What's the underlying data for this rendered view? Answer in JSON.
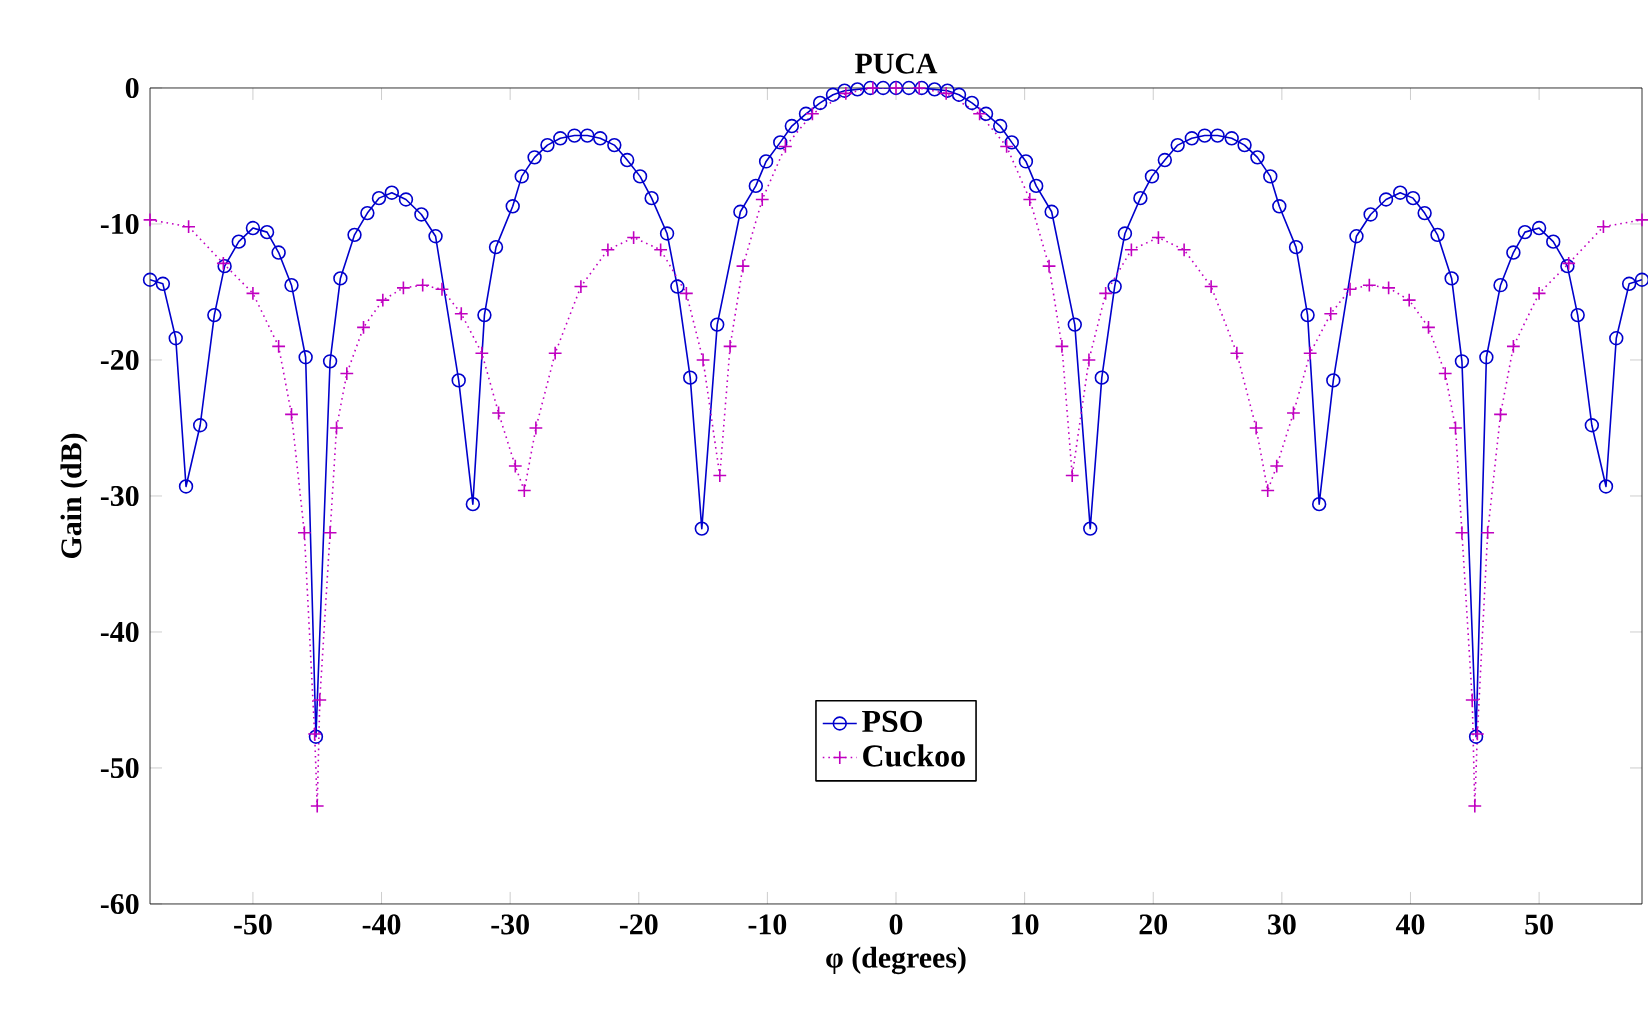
{
  "chart_data": {
    "type": "line",
    "title": "PUCA",
    "xlabel": "φ (degrees)",
    "ylabel": "Gain (dB)",
    "xlim": [
      -58,
      58
    ],
    "ylim": [
      -60,
      0
    ],
    "xticks": [
      -50,
      -40,
      -30,
      -20,
      -10,
      0,
      10,
      20,
      30,
      40,
      50
    ],
    "yticks": [
      -60,
      -50,
      -40,
      -30,
      -20,
      -10,
      0
    ],
    "legend": "bottom",
    "series": [
      {
        "name": "PSO",
        "color": "#0000cc",
        "marker": "circle",
        "line_style": "solid",
        "x": [
          -58,
          -57,
          -56,
          -55.2,
          -54.1,
          -53,
          -52.2,
          -51.1,
          -50,
          -48.9,
          -48,
          -47,
          -45.9,
          -45.1,
          -44,
          -43.2,
          -42.1,
          -41.1,
          -40.2,
          -39.2,
          -38.1,
          -36.9,
          -35.8,
          -34,
          -32.9,
          -32,
          -31.1,
          -29.8,
          -29.1,
          -28.1,
          -27.1,
          -26.1,
          -25,
          -24,
          -23,
          -21.9,
          -20.9,
          -19.9,
          -19,
          -17.8,
          -17,
          -16,
          -15.1,
          -13.9,
          -12.1,
          -10.9,
          -10.1,
          -9,
          -8.1,
          -7,
          -5.9,
          -4.9,
          -4,
          -3,
          -2,
          -1,
          0,
          1,
          2,
          3,
          4,
          4.9,
          5.9,
          7,
          8.1,
          9,
          10.1,
          10.9,
          12.1,
          13.9,
          15.1,
          16,
          17,
          17.8,
          19,
          19.9,
          20.9,
          21.9,
          23,
          24,
          25,
          26.1,
          27.1,
          28.1,
          29.1,
          29.8,
          31.1,
          32,
          32.9,
          34,
          35.8,
          36.9,
          38.1,
          39.2,
          40.2,
          41.1,
          42.1,
          43.2,
          44,
          45.1,
          45.9,
          47,
          48,
          48.9,
          50,
          51.1,
          52.2,
          53,
          54.1,
          55.2,
          56,
          57,
          58
        ],
        "values": [
          -14.1,
          -14.4,
          -18.4,
          -29.3,
          -24.8,
          -16.7,
          -13.1,
          -11.3,
          -10.3,
          -10.6,
          -12.1,
          -14.5,
          -19.8,
          -47.7,
          -20.1,
          -14,
          -10.8,
          -9.2,
          -8.1,
          -7.7,
          -8.2,
          -9.3,
          -10.9,
          -21.5,
          -30.6,
          -16.7,
          -11.7,
          -8.7,
          -6.5,
          -5.1,
          -4.2,
          -3.7,
          -3.5,
          -3.5,
          -3.7,
          -4.2,
          -5.3,
          -6.5,
          -8.1,
          -10.7,
          -14.6,
          -21.3,
          -32.4,
          -17.4,
          -9.1,
          -7.2,
          -5.4,
          -4,
          -2.8,
          -1.9,
          -1.1,
          -0.5,
          -0.2,
          -0.1,
          0,
          0,
          0,
          0,
          0,
          -0.1,
          -0.2,
          -0.5,
          -1.1,
          -1.9,
          -2.8,
          -4,
          -5.4,
          -7.2,
          -9.1,
          -17.4,
          -32.4,
          -21.3,
          -14.6,
          -10.7,
          -8.1,
          -6.5,
          -5.3,
          -4.2,
          -3.7,
          -3.5,
          -3.5,
          -3.7,
          -4.2,
          -5.1,
          -6.5,
          -8.7,
          -11.7,
          -16.7,
          -30.6,
          -21.5,
          -10.9,
          -9.3,
          -8.2,
          -7.7,
          -8.1,
          -9.2,
          -10.8,
          -14,
          -20.1,
          -47.7,
          -19.8,
          -14.5,
          -12.1,
          -10.6,
          -10.3,
          -11.3,
          -13.1,
          -16.7,
          -24.8,
          -29.3,
          -18.4,
          -14.4,
          -14.1
        ]
      },
      {
        "name": "Cuckoo",
        "color": "#c000c0",
        "marker": "cross",
        "line_style": "dotted",
        "x": [
          -58,
          -55,
          -52.3,
          -50,
          -48,
          -47,
          -46,
          -45.2,
          -45,
          -44.8,
          -44,
          -43.5,
          -42.7,
          -41.4,
          -39.9,
          -38.3,
          -36.8,
          -35.3,
          -33.8,
          -32.2,
          -30.9,
          -29.6,
          -28.9,
          -28,
          -26.5,
          -24.5,
          -22.4,
          -20.4,
          -18.3,
          -16.3,
          -15,
          -13.7,
          -12.9,
          -11.9,
          -10.4,
          -8.6,
          -6.5,
          -3.9,
          -1.8,
          0,
          1.8,
          3.9,
          6.5,
          8.6,
          10.4,
          11.9,
          12.9,
          13.7,
          15,
          16.3,
          18.3,
          20.4,
          22.4,
          24.5,
          26.5,
          28,
          28.9,
          29.6,
          30.9,
          32.2,
          33.8,
          35.3,
          36.8,
          38.3,
          39.9,
          41.4,
          42.7,
          43.5,
          44,
          44.8,
          45,
          45.2,
          46,
          47,
          48,
          50,
          52.3,
          55,
          58
        ],
        "values": [
          -9.7,
          -10.2,
          -12.9,
          -15.1,
          -19,
          -24,
          -32.7,
          -47.5,
          -52.8,
          -45,
          -32.7,
          -25,
          -21,
          -17.6,
          -15.6,
          -14.7,
          -14.5,
          -14.8,
          -16.6,
          -19.5,
          -23.9,
          -27.8,
          -29.6,
          -25,
          -19.5,
          -14.6,
          -11.9,
          -11,
          -11.9,
          -15.1,
          -20,
          -28.5,
          -19,
          -13.1,
          -8.2,
          -4.3,
          -1.9,
          -0.4,
          0,
          0,
          0,
          -0.4,
          -1.9,
          -4.3,
          -8.2,
          -13.1,
          -19,
          -28.5,
          -20,
          -15.1,
          -11.9,
          -11,
          -11.9,
          -14.6,
          -19.5,
          -25,
          -29.6,
          -27.8,
          -23.9,
          -19.5,
          -16.6,
          -14.8,
          -14.5,
          -14.7,
          -15.6,
          -17.6,
          -21,
          -25,
          -32.7,
          -45,
          -52.8,
          -47.5,
          -32.7,
          -24,
          -19,
          -15.1,
          -12.9,
          -10.2,
          -9.7
        ]
      }
    ]
  }
}
